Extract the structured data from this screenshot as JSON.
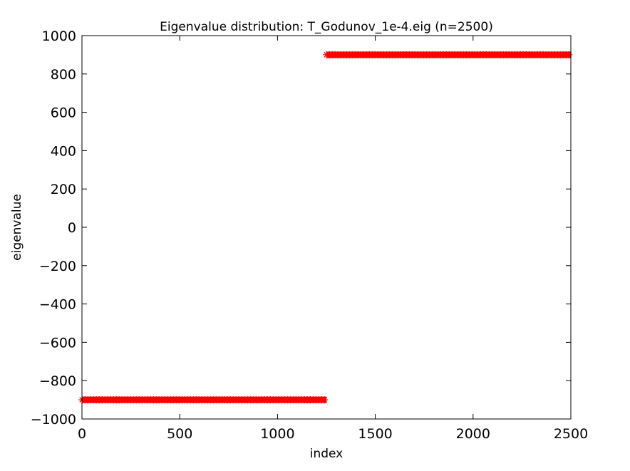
{
  "chart_data": {
    "type": "scatter",
    "title": "Eigenvalue distribution: T_Godunov_1e-4.eig (n=2500)",
    "xlabel": "index",
    "ylabel": "eigenvalue",
    "xlim": [
      0,
      2500
    ],
    "ylim": [
      -1000,
      1000
    ],
    "xticks": [
      0,
      500,
      1000,
      1500,
      2000,
      2500
    ],
    "yticks": [
      -1000,
      -800,
      -600,
      -400,
      -200,
      0,
      200,
      400,
      600,
      800,
      1000
    ],
    "xtick_labels": [
      "0",
      "500",
      "1000",
      "1500",
      "2000",
      "2500"
    ],
    "ytick_labels": [
      "−1000",
      "−800",
      "−600",
      "−400",
      "−200",
      "0",
      "200",
      "400",
      "600",
      "800",
      "1000"
    ],
    "grid": false,
    "marker": "asterisk",
    "color": "#ff0000",
    "series": [
      {
        "x_start": 1,
        "x_end": 1250,
        "y": -900
      },
      {
        "x_start": 1251,
        "x_end": 2500,
        "y": 900
      }
    ]
  }
}
